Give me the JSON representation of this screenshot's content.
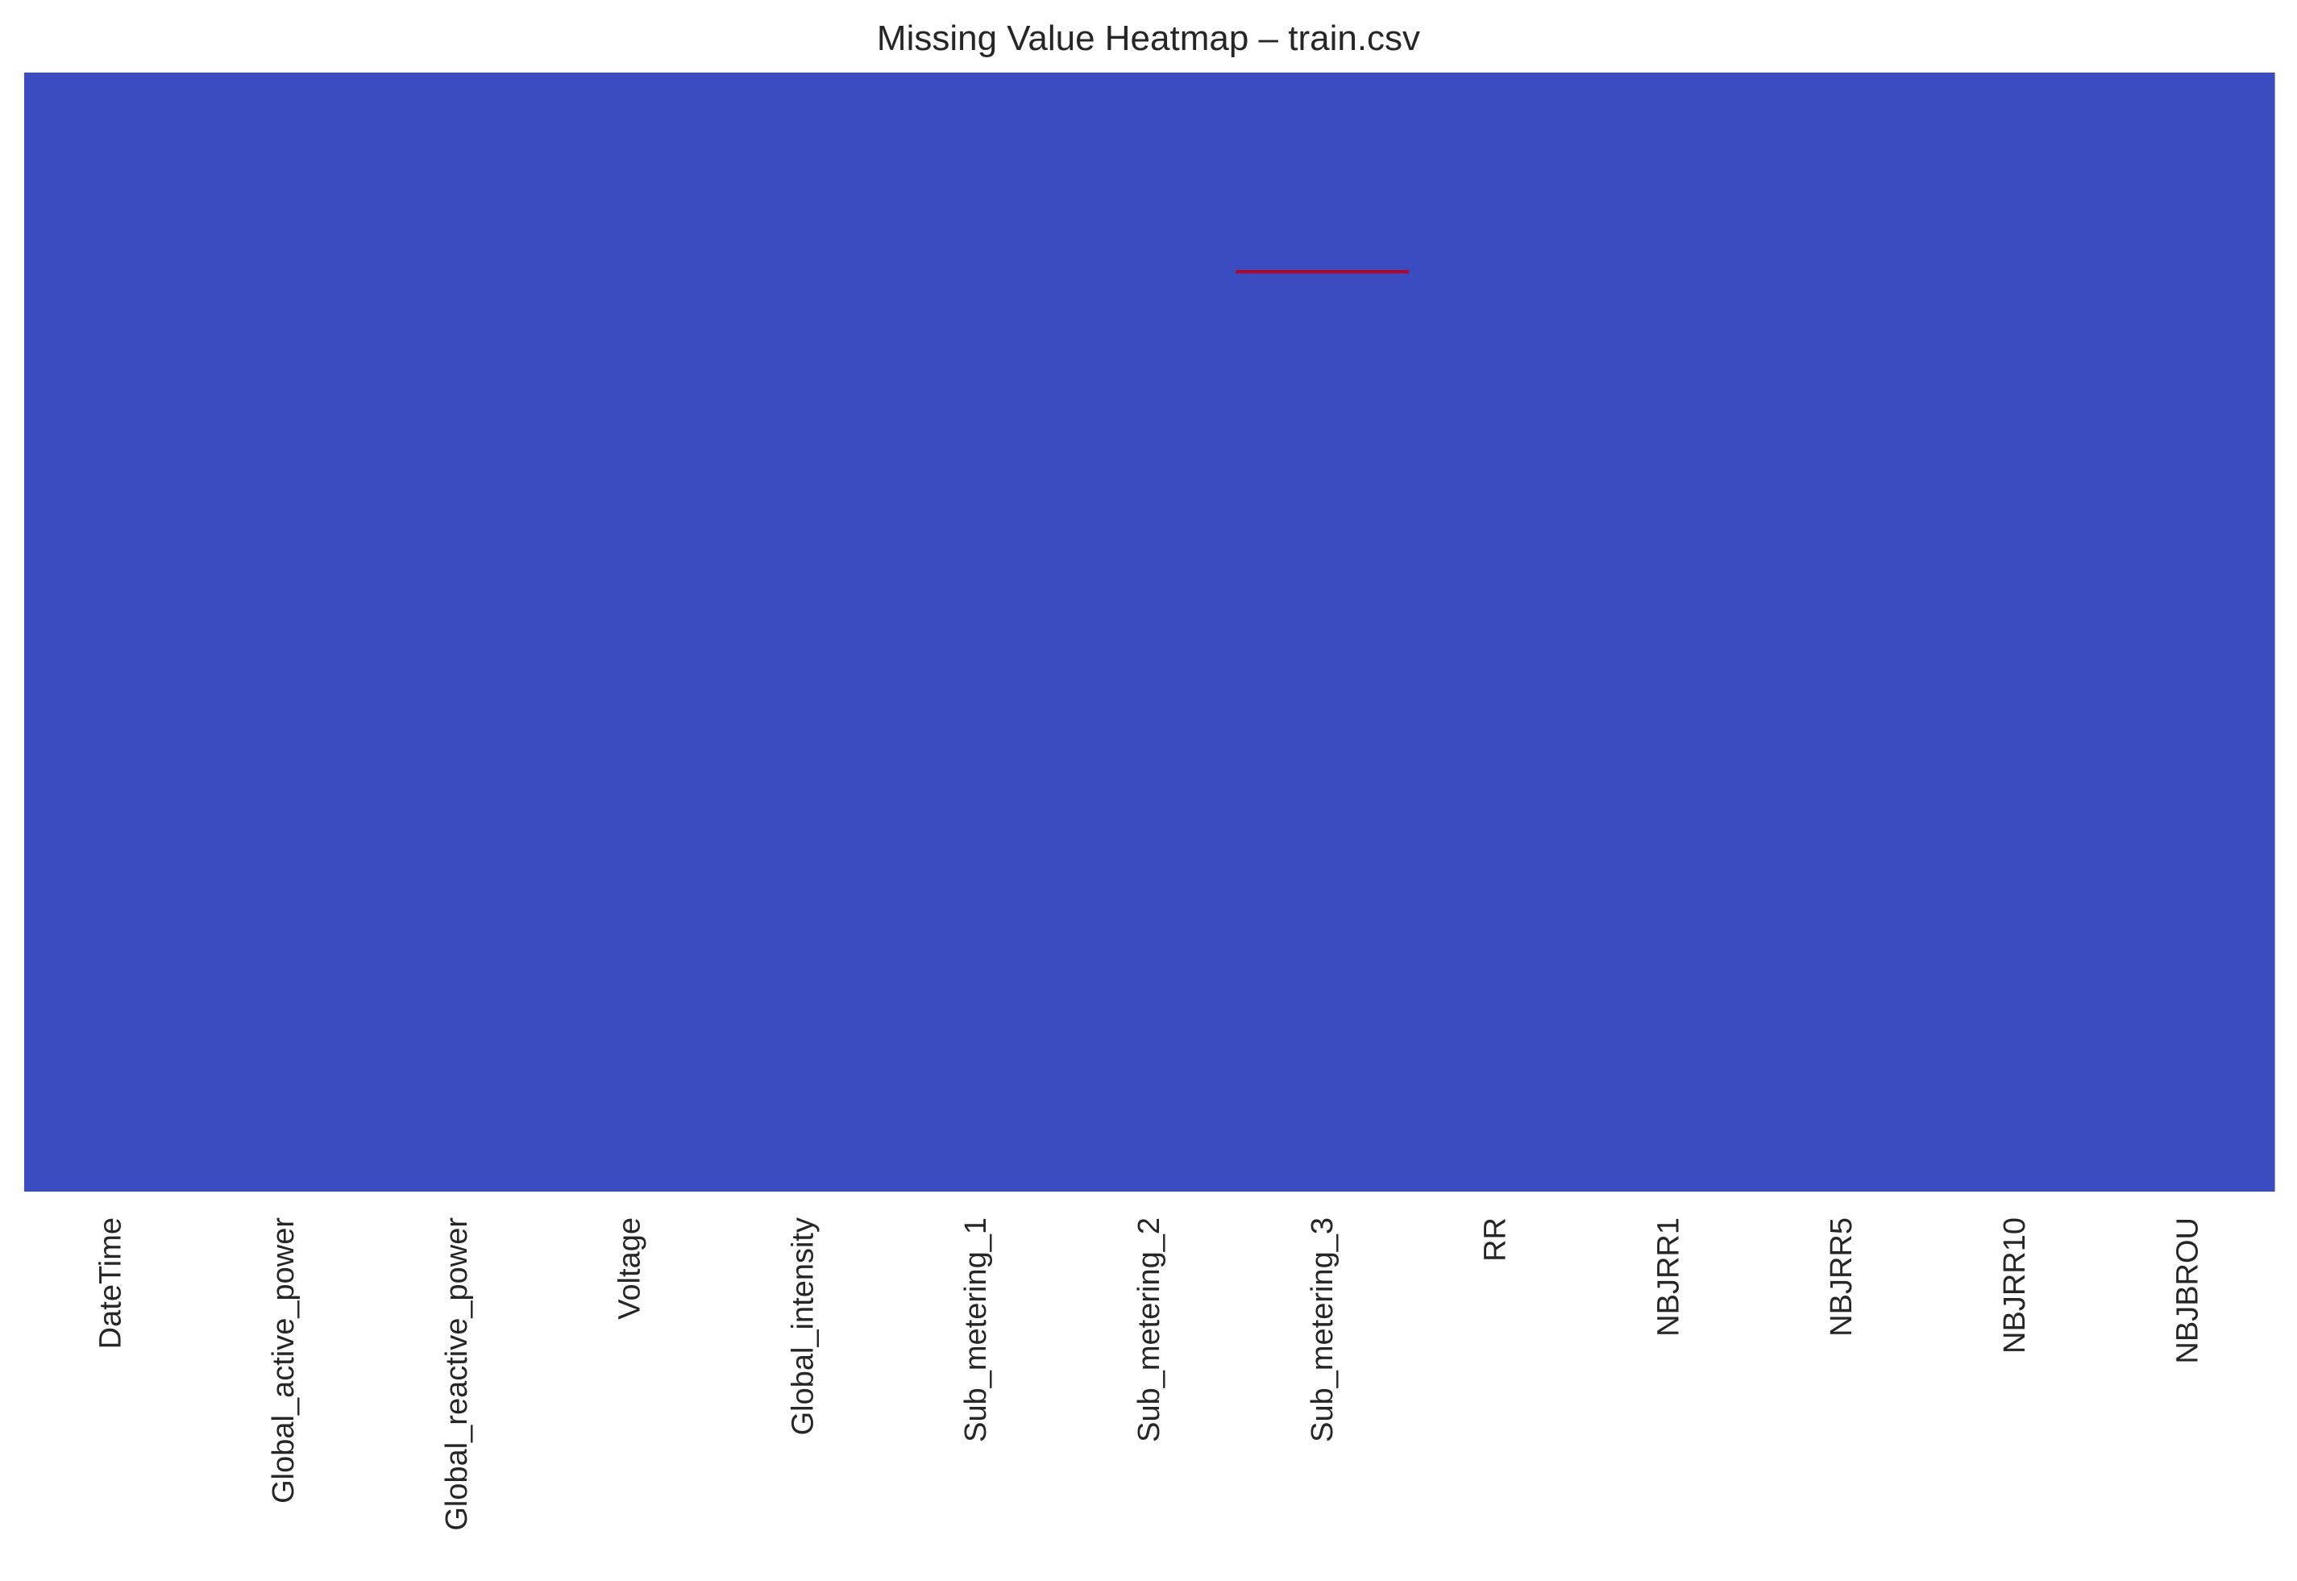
{
  "chart_data": {
    "type": "heatmap",
    "title": "Missing Value Heatmap – train.csv",
    "xlabel": "",
    "ylabel": "",
    "columns": [
      "DateTime",
      "Global_active_power",
      "Global_reactive_power",
      "Voltage",
      "Global_intensity",
      "Sub_metering_1",
      "Sub_metering_2",
      "Sub_metering_3",
      "RR",
      "NBJRR1",
      "NBJRR5",
      "NBJRR10",
      "NBJBROU"
    ],
    "row_ticks_shown": false,
    "colorbar": false,
    "colormap": "coolwarm",
    "present_color": "#3b4cc0",
    "missing_color": "#b40426",
    "missing_segments": [
      {
        "column": "Sub_metering_3",
        "row_position": 0.178
      }
    ]
  }
}
